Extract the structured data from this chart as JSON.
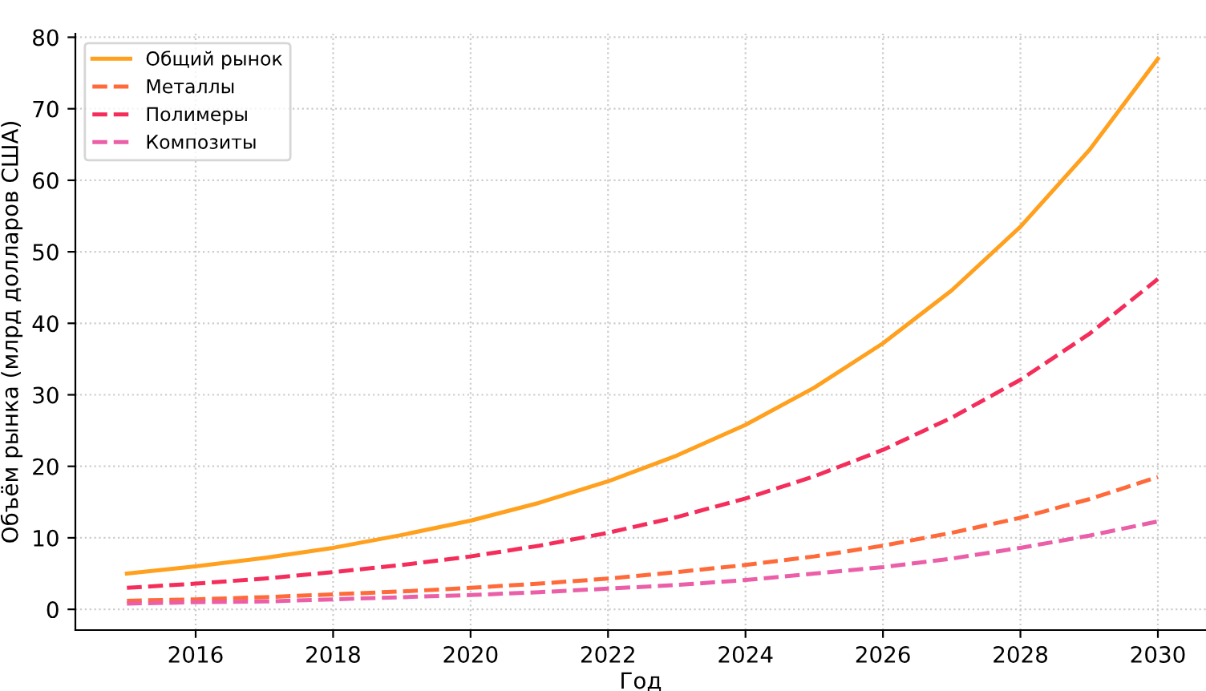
{
  "chart_data": {
    "type": "line",
    "xlabel": "Год",
    "ylabel": "Объём рынка (млрд долларов США)",
    "x": [
      2015,
      2016,
      2017,
      2018,
      2019,
      2020,
      2021,
      2022,
      2023,
      2024,
      2025,
      2026,
      2027,
      2028,
      2029,
      2030
    ],
    "series": [
      {
        "name": "Общий рынок",
        "color": "#ffa01e",
        "line_style": "solid",
        "values": [
          5,
          6,
          7.2,
          8.6,
          10.4,
          12.4,
          14.9,
          17.9,
          21.5,
          25.8,
          31,
          37.2,
          44.6,
          53.5,
          64.2,
          77
        ]
      },
      {
        "name": "Металлы",
        "color": "#ff6a3a",
        "line_style": "dashed",
        "values": [
          1.2,
          1.4,
          1.7,
          2.1,
          2.5,
          3,
          3.6,
          4.3,
          5.2,
          6.2,
          7.4,
          8.9,
          10.7,
          12.8,
          15.4,
          18.5
        ]
      },
      {
        "name": "Полимеры",
        "color": "#f42d5a",
        "line_style": "dashed",
        "values": [
          3,
          3.6,
          4.3,
          5.2,
          6.2,
          7.4,
          8.9,
          10.7,
          12.9,
          15.5,
          18.6,
          22.3,
          26.8,
          32.1,
          38.5,
          46.2
        ]
      },
      {
        "name": "Композиты",
        "color": "#ea5fa8",
        "line_style": "dashed",
        "values": [
          0.8,
          1,
          1.1,
          1.4,
          1.7,
          2,
          2.4,
          2.9,
          3.4,
          4.1,
          5,
          5.9,
          7.1,
          8.6,
          10.3,
          12.3
        ]
      }
    ],
    "xlim": [
      2014.25,
      2030.7
    ],
    "xticks": [
      2016,
      2018,
      2020,
      2022,
      2024,
      2026,
      2028,
      2030
    ],
    "ylim": [
      -2.9,
      80.5
    ],
    "yticks": [
      0,
      10,
      20,
      30,
      40,
      50,
      60,
      70,
      80
    ],
    "grid": true,
    "legend": "top left"
  }
}
